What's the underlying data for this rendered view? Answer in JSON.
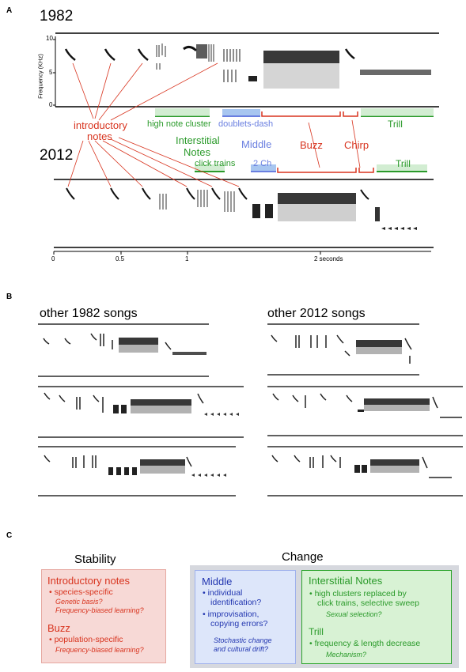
{
  "panel_a": {
    "label": "A",
    "year_top": "1982",
    "year_bottom": "2012",
    "y_axis_label": "Frequency (KHz)",
    "y_ticks": [
      "10",
      "5",
      "0"
    ],
    "x_ticks": [
      "0",
      "0.5",
      "1",
      "2 seconds"
    ],
    "intro_label_line1": "introductory",
    "intro_label_line2": "notes",
    "interstitial_line1": "Interstitial",
    "interstitial_line2": "Notes",
    "label_high_note_cluster": "high note cluster",
    "label_doublets_dash": "doublets-dash",
    "label_middle": "Middle",
    "label_buzz": "Buzz",
    "label_chirp": "Chirp",
    "label_trill_top": "Trill",
    "label_click_trains": "click trains",
    "label_2ch": "2 Ch",
    "label_trill_bottom": "Trill",
    "colors": {
      "green": "#2a9a2a",
      "blue": "#6a7fe0",
      "red": "#d8341f"
    }
  },
  "panel_b": {
    "label": "B",
    "title_left": "other 1982 songs",
    "title_right": "other 2012 songs"
  },
  "panel_c": {
    "label": "C",
    "stability_title": "Stability",
    "change_title": "Change",
    "intro_box": {
      "title": "Introductory notes",
      "bullet1": "species-specific",
      "note1": "Genetic basis?",
      "note2": "Frequency-biased learning?",
      "buzz_title": "Buzz",
      "bullet2": "population-specific",
      "note3": "Frequency-biased learning?"
    },
    "middle_box": {
      "title": "Middle",
      "bullet1_l1": "individual",
      "bullet1_l2": "identification?",
      "bullet2_l1": "improvisation,",
      "bullet2_l2": "copying errors?",
      "note1": "Stochastic change",
      "note2": "and cultural drift?"
    },
    "interstitial_box": {
      "title": "Interstitial Notes",
      "bullet1_l1": "high clusters replaced by",
      "bullet1_l2": "click trains, selective sweep",
      "note1": "Sexual selection?",
      "trill_title": "Trill",
      "bullet2": "frequency & length decrease",
      "note2": "Mechanism?"
    }
  }
}
